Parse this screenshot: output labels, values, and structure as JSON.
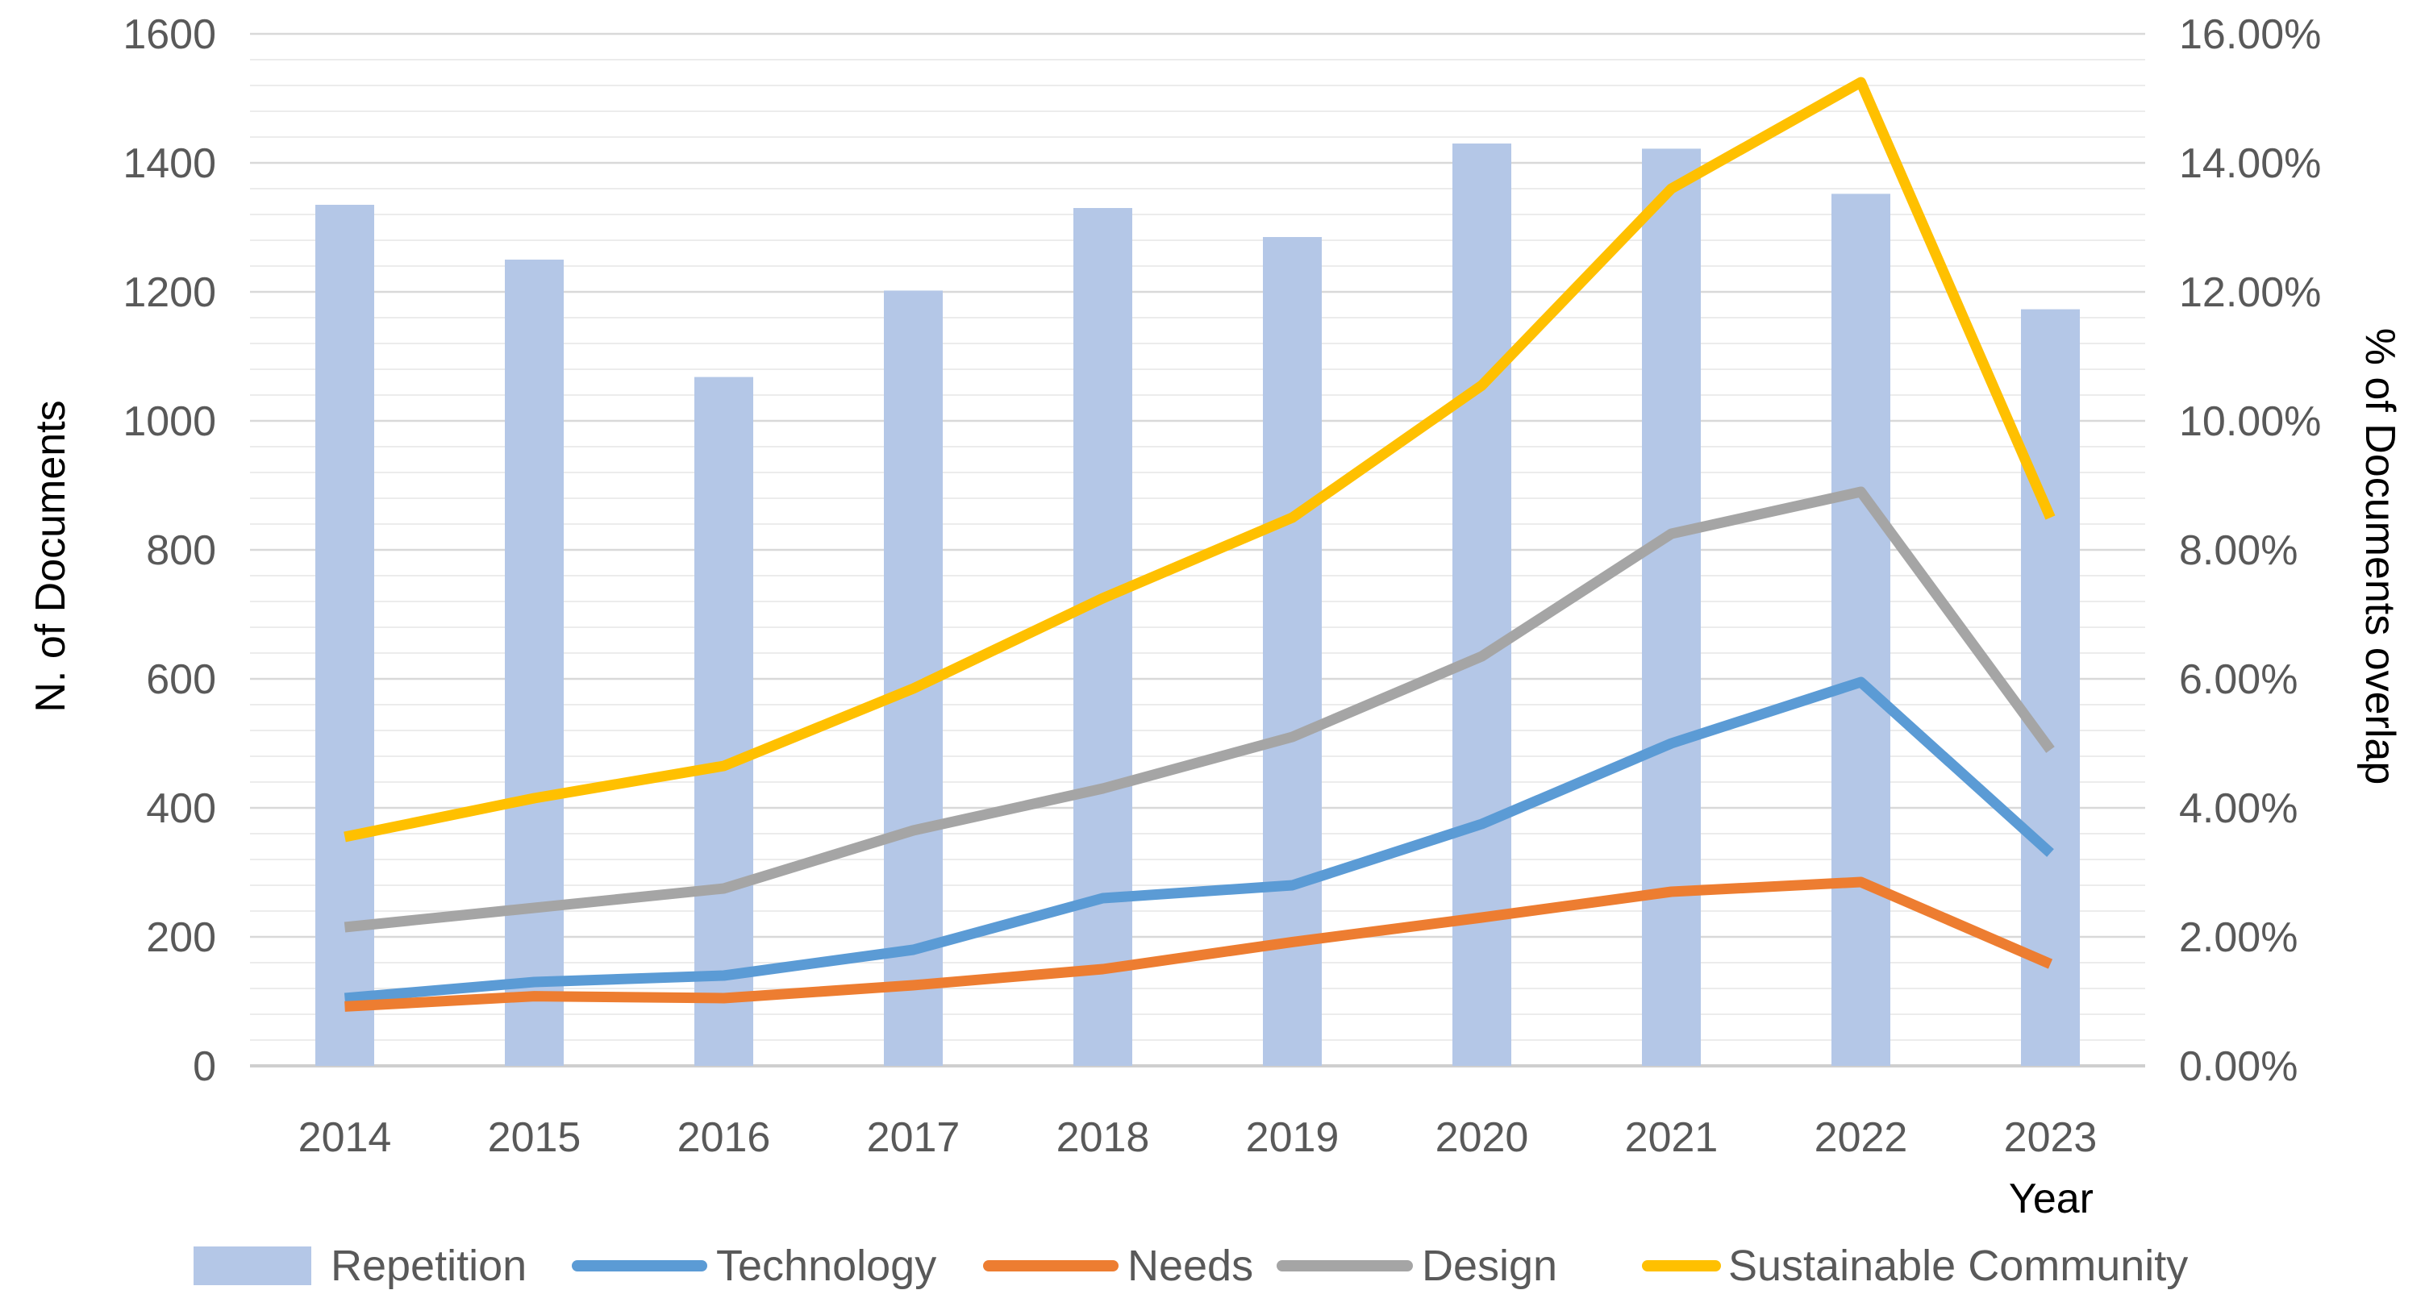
{
  "chart_data": {
    "type": "bar+line",
    "title": "",
    "xlabel": "Year",
    "ylabel_left": "N. of Documents",
    "ylabel_right": "% of Documents overlap",
    "categories": [
      "2014",
      "2015",
      "2016",
      "2017",
      "2018",
      "2019",
      "2020",
      "2021",
      "2022",
      "2023"
    ],
    "left_axis": {
      "ylim": [
        0,
        1600
      ],
      "ticks": [
        0,
        200,
        400,
        600,
        800,
        1000,
        1200,
        1400,
        1600
      ],
      "tick_labels": [
        "0",
        "200",
        "400",
        "600",
        "800",
        "1000",
        "1200",
        "1400",
        "1600"
      ],
      "minor_step": 40
    },
    "right_axis": {
      "ylim": [
        0,
        16
      ],
      "ticks": [
        0,
        2,
        4,
        6,
        8,
        10,
        12,
        14,
        16
      ],
      "tick_labels": [
        "0.00%",
        "2.00%",
        "4.00%",
        "6.00%",
        "8.00%",
        "10.00%",
        "12.00%",
        "14.00%",
        "16.00%"
      ]
    },
    "grid": true,
    "legend_position": "bottom",
    "series": [
      {
        "name": "Repetition",
        "kind": "bar",
        "axis": "left",
        "color": "#b4c7e7",
        "values": [
          1335,
          1250,
          1068,
          1202,
          1330,
          1285,
          1430,
          1422,
          1352,
          1173
        ]
      },
      {
        "name": "Technology",
        "kind": "line",
        "axis": "right",
        "color": "#5b9bd5",
        "values": [
          1.05,
          1.3,
          1.4,
          1.8,
          2.6,
          2.8,
          3.75,
          5.0,
          5.95,
          3.3
        ]
      },
      {
        "name": "Needs",
        "kind": "line",
        "axis": "right",
        "color": "#ed7d31",
        "values": [
          0.92,
          1.08,
          1.05,
          1.25,
          1.5,
          1.92,
          2.3,
          2.7,
          2.85,
          1.58
        ]
      },
      {
        "name": "Design",
        "kind": "line",
        "axis": "right",
        "color": "#a5a5a5",
        "values": [
          2.15,
          2.45,
          2.75,
          3.65,
          4.3,
          5.1,
          6.35,
          8.25,
          8.9,
          4.9
        ]
      },
      {
        "name": "Sustainable Community",
        "kind": "line",
        "axis": "right",
        "color": "#ffc000",
        "values": [
          3.55,
          4.15,
          4.65,
          5.85,
          7.25,
          8.5,
          10.55,
          13.6,
          15.25,
          8.5
        ]
      }
    ]
  }
}
